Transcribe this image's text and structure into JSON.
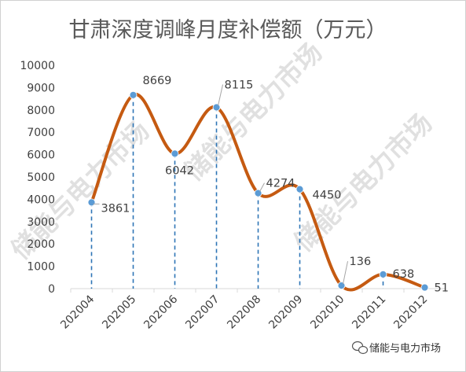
{
  "chart_data": {
    "type": "line",
    "title": "甘肃深度调峰月度补偿额（万元）",
    "categories": [
      "202004",
      "202005",
      "202006",
      "202007",
      "202008",
      "202009",
      "202010",
      "202011",
      "202012"
    ],
    "values": [
      3861,
      8669,
      6042,
      8115,
      4274,
      4450,
      136,
      638,
      51
    ],
    "data_labels": [
      "3861",
      "8669",
      "6042",
      "8115",
      "4274",
      "4450",
      "136",
      "638",
      "51"
    ],
    "ylim": [
      0,
      10000
    ],
    "yticks": [
      0,
      1000,
      2000,
      3000,
      4000,
      5000,
      6000,
      7000,
      8000,
      9000,
      10000
    ],
    "ytick_labels": [
      "0",
      "1000",
      "2000",
      "3000",
      "4000",
      "5000",
      "6000",
      "7000",
      "8000",
      "9000",
      "10000"
    ],
    "smooth": true,
    "drop_lines": true,
    "grid": false,
    "legend": "none",
    "line_color": "#c55a11",
    "marker_color": "#5b9bd5",
    "drop_line_color": "#2e75b6"
  },
  "watermark": {
    "text": "储能与电力市场",
    "brand_text": "储能与电力市场"
  }
}
